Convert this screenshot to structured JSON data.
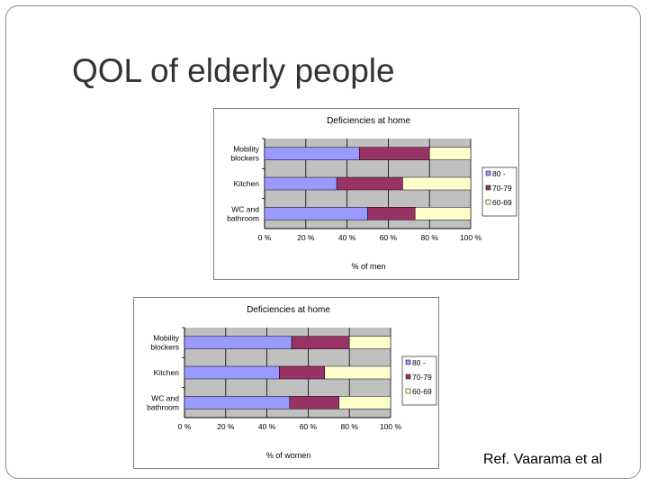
{
  "slide": {
    "title": "QOL of elderly people",
    "reference": "Ref. Vaarama et al"
  },
  "colors": {
    "series_80": "#9999ff",
    "series_70_79": "#993366",
    "series_60_69": "#ffffcc",
    "plot_background": "#c0c0c0"
  },
  "chart_data": [
    {
      "type": "bar",
      "orientation": "horizontal",
      "stacked": "percent",
      "title": "Deficiencies at home",
      "xlabel": "% of men",
      "ylabel": "",
      "xlim": [
        0,
        100
      ],
      "xticks": [
        "0 %",
        "20 %",
        "40 %",
        "60 %",
        "80 %",
        "100 %"
      ],
      "categories": [
        "Mobility blockers",
        "Kitchen",
        "WC and bathroom"
      ],
      "category_labels": [
        [
          "Mobility",
          "blockers"
        ],
        [
          "Kitchen"
        ],
        [
          "WC and",
          "bathroom"
        ]
      ],
      "series": [
        {
          "name": "80 -",
          "color": "#9999ff",
          "values": [
            46,
            35,
            50
          ]
        },
        {
          "name": "70-79",
          "color": "#993366",
          "values": [
            34,
            32,
            23
          ]
        },
        {
          "name": "60-69",
          "color": "#ffffcc",
          "values": [
            20,
            33,
            27
          ]
        }
      ],
      "grid": true,
      "legend": "right"
    },
    {
      "type": "bar",
      "orientation": "horizontal",
      "stacked": "percent",
      "title": "Deficiencies at home",
      "xlabel": "% of women",
      "ylabel": "",
      "xlim": [
        0,
        100
      ],
      "xticks": [
        "0 %",
        "20 %",
        "40 %",
        "60 %",
        "80 %",
        "100 %"
      ],
      "categories": [
        "Mobility blockers",
        "Kitchen",
        "WC and bathroom"
      ],
      "category_labels": [
        [
          "Mobility",
          "blockers"
        ],
        [
          "Kitchen"
        ],
        [
          "WC and",
          "bathroom"
        ]
      ],
      "series": [
        {
          "name": "80 -",
          "color": "#9999ff",
          "values": [
            52,
            46,
            51
          ]
        },
        {
          "name": "70-79",
          "color": "#993366",
          "values": [
            28,
            22,
            24
          ]
        },
        {
          "name": "60-69",
          "color": "#ffffcc",
          "values": [
            20,
            32,
            25
          ]
        }
      ],
      "grid": true,
      "legend": "right"
    }
  ]
}
